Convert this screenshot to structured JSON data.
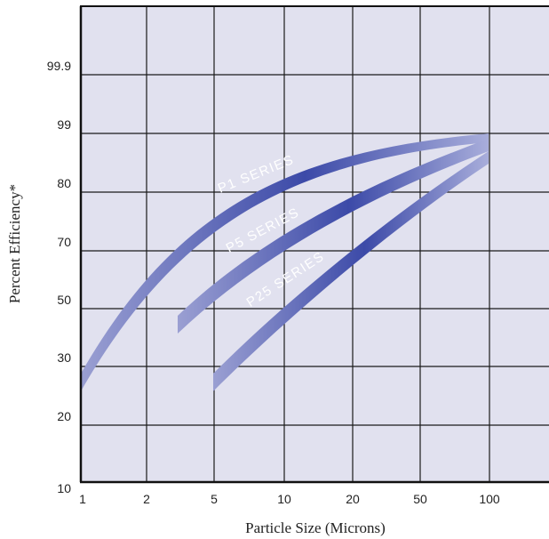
{
  "chart_data": {
    "type": "line",
    "title": "",
    "xlabel": "Particle Size (Microns)",
    "ylabel": "Percent Efficiency*",
    "x_ticks": [
      "1",
      "2",
      "5",
      "10",
      "20",
      "50",
      "100"
    ],
    "y_ticks": [
      "10",
      "20",
      "30",
      "50",
      "70",
      "80",
      "99",
      "99.9"
    ],
    "grid": true,
    "colors": {
      "plot_background": "#e1e1ef",
      "grid_line": "#1a1a1a",
      "band_dark": "#3c4aa8",
      "band_light": "#9a9fd2"
    },
    "series": [
      {
        "name": "P1 SERIES",
        "label": "P1 SERIES",
        "points": [
          {
            "x": "1",
            "y": "30"
          },
          {
            "x": "2",
            "y": "50"
          },
          {
            "x": "5",
            "y": "70"
          },
          {
            "x": "10",
            "y": "80"
          },
          {
            "x": "20",
            "y": "85"
          },
          {
            "x": "50",
            "y": "99"
          },
          {
            "x": "100",
            "y": "99"
          }
        ]
      },
      {
        "name": "P5 SERIES",
        "label": "P5 SERIES",
        "points": [
          {
            "x": "3",
            "y": "40"
          },
          {
            "x": "5",
            "y": "60"
          },
          {
            "x": "10",
            "y": "70"
          },
          {
            "x": "20",
            "y": "80"
          },
          {
            "x": "50",
            "y": "85"
          },
          {
            "x": "100",
            "y": "98"
          }
        ]
      },
      {
        "name": "P25 SERIES",
        "label": "P25 SERIES",
        "points": [
          {
            "x": "5",
            "y": "27"
          },
          {
            "x": "10",
            "y": "45"
          },
          {
            "x": "20",
            "y": "65"
          },
          {
            "x": "50",
            "y": "80"
          },
          {
            "x": "100",
            "y": "90"
          }
        ]
      }
    ]
  }
}
